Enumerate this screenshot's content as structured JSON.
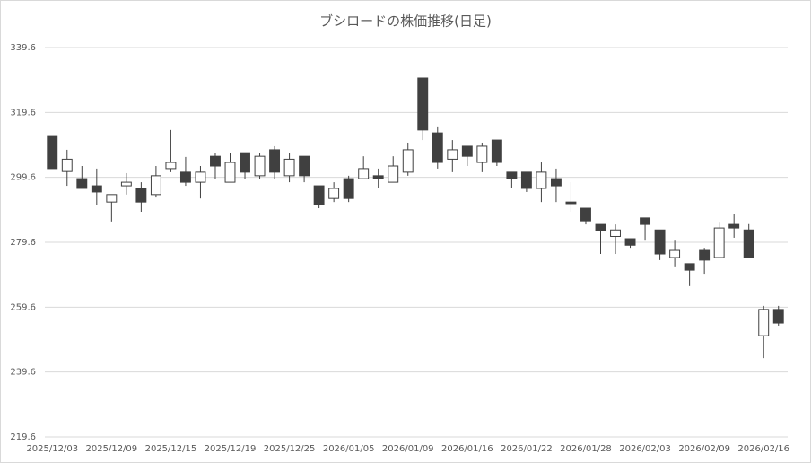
{
  "chart_data": {
    "type": "candlestick",
    "title": "ブシロードの株価推移(日足)",
    "categories": [
      "2025/12/03",
      null,
      null,
      null,
      "2025/12/09",
      null,
      null,
      null,
      "2025/12/15",
      null,
      null,
      null,
      "2025/12/19",
      null,
      null,
      null,
      "2025/12/25",
      null,
      null,
      null,
      "2026/01/05",
      null,
      null,
      null,
      "2026/01/09",
      null,
      null,
      null,
      "2026/01/16",
      null,
      null,
      null,
      "2026/01/22",
      null,
      null,
      null,
      "2026/01/28",
      null,
      null,
      null,
      "2026/02/03",
      null,
      null,
      null,
      "2026/02/09",
      null,
      null,
      null,
      "2026/02/16",
      null
    ],
    "open": [
      312.2,
      301.4,
      299.2,
      297.0,
      292.0,
      297.0,
      296.2,
      294.3,
      302.3,
      301.2,
      298.1,
      306.1,
      298.1,
      307.2,
      300.1,
      308.1,
      300.1,
      306.1,
      297.0,
      293.1,
      299.2,
      299.2,
      300.1,
      298.1,
      301.2,
      330.2,
      313.3,
      305.2,
      309.2,
      304.2,
      311.1,
      301.2,
      301.2,
      296.2,
      299.2,
      292.0,
      290.1,
      285.1,
      281.4,
      280.7,
      287.1,
      283.4,
      274.9,
      273.0,
      277.1,
      274.9,
      285.1,
      283.4,
      250.8,
      258.9
    ],
    "high": [
      312.2,
      308.1,
      303.1,
      302.3,
      294.3,
      300.9,
      298.1,
      303.1,
      314.2,
      305.9,
      303.1,
      307.2,
      307.2,
      307.2,
      307.2,
      309.2,
      307.2,
      306.1,
      297.0,
      298.1,
      300.1,
      306.1,
      302.3,
      306.1,
      310.3,
      330.2,
      315.3,
      311.1,
      309.2,
      310.3,
      311.1,
      301.2,
      301.2,
      304.2,
      302.3,
      298.1,
      290.1,
      285.1,
      285.1,
      280.7,
      287.1,
      283.4,
      280.1,
      273.0,
      277.9,
      285.9,
      288.2,
      285.2,
      260.0,
      260.0
    ],
    "low": [
      302.3,
      297.0,
      296.2,
      291.2,
      286.0,
      294.3,
      289.0,
      293.4,
      301.2,
      297.0,
      293.1,
      299.2,
      298.1,
      299.2,
      299.2,
      299.2,
      298.1,
      298.1,
      290.1,
      292.0,
      292.0,
      299.2,
      296.2,
      298.1,
      300.1,
      311.1,
      302.3,
      301.2,
      303.1,
      301.2,
      303.1,
      296.2,
      295.1,
      292.0,
      292.0,
      289.0,
      285.1,
      276.0,
      276.0,
      277.9,
      280.1,
      274.1,
      271.9,
      266.1,
      269.9,
      274.9,
      281.0,
      274.9,
      243.9,
      253.9
    ],
    "close": [
      302.3,
      305.2,
      296.2,
      295.1,
      294.3,
      298.1,
      292.0,
      300.1,
      304.2,
      298.1,
      301.2,
      303.1,
      304.2,
      301.2,
      306.1,
      301.2,
      305.2,
      300.1,
      291.2,
      296.2,
      293.1,
      302.3,
      299.2,
      303.1,
      308.1,
      314.2,
      304.2,
      308.1,
      306.1,
      309.2,
      304.2,
      299.2,
      296.2,
      301.2,
      297.0,
      291.5,
      286.2,
      283.2,
      283.4,
      278.7,
      285.1,
      276.0,
      277.1,
      271.0,
      274.1,
      284.0,
      284.0,
      274.9,
      258.9,
      254.7
    ],
    "up_color": "#ffffff",
    "down_color": "#404040",
    "edge_color": "#404040",
    "ylim": [
      219.6,
      339.6
    ],
    "yticks": [
      219.6,
      239.6,
      259.6,
      279.6,
      299.6,
      319.6,
      339.6
    ],
    "grid": true
  }
}
